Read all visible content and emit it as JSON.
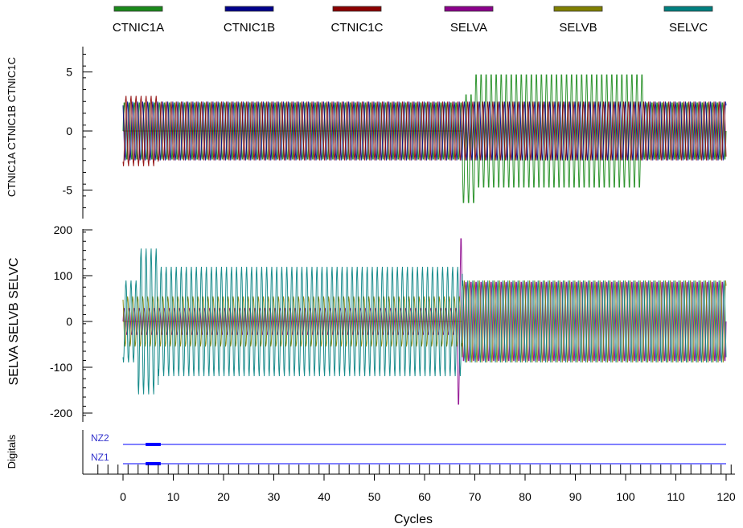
{
  "chart_data": {
    "type": "line",
    "xlabel": "Cycles",
    "x_ticks": [
      0,
      10,
      20,
      30,
      40,
      50,
      60,
      70,
      80,
      90,
      100,
      110,
      120
    ],
    "xlim": [
      -5,
      122
    ],
    "legend_position": "top",
    "legend": [
      {
        "name": "CTNIC1A",
        "color": "#1a8a1a"
      },
      {
        "name": "CTNIC1B",
        "color": "#00008b"
      },
      {
        "name": "CTNIC1C",
        "color": "#8b0000"
      },
      {
        "name": "SELVA",
        "color": "#8b008b"
      },
      {
        "name": "SELVB",
        "color": "#808000"
      },
      {
        "name": "SELVC",
        "color": "#008080"
      }
    ],
    "panels": [
      {
        "id": "currents",
        "ylabel": "CTNIC1A CTNIC1B CTNIC1C",
        "ylim": [
          -7.5,
          7.5
        ],
        "y_ticks": [
          5,
          0,
          -5
        ],
        "series": [
          {
            "name": "CTNIC1A",
            "segments": [
              {
                "x0": 0,
                "x1": 67.5,
                "amp": 2.5,
                "offset": 0
              },
              {
                "x0": 67.5,
                "x1": 70,
                "amp": 4.8,
                "offset": -1.5
              },
              {
                "x0": 70,
                "x1": 103.5,
                "amp": 5.0,
                "offset": 0
              },
              {
                "x0": 103.5,
                "x1": 120,
                "amp": 2.5,
                "offset": 0
              }
            ]
          },
          {
            "name": "CTNIC1B",
            "segments": [
              {
                "x0": 0,
                "x1": 120,
                "amp": 2.5,
                "offset": 0
              }
            ]
          },
          {
            "name": "CTNIC1C",
            "segments": [
              {
                "x0": 0,
                "x1": 7,
                "amp": 3.0,
                "offset": 0
              },
              {
                "x0": 7,
                "x1": 120,
                "amp": 2.5,
                "offset": 0
              }
            ]
          }
        ]
      },
      {
        "id": "voltages",
        "ylabel": "SELVA SELVB SELVC",
        "ylim": [
          -225,
          225
        ],
        "y_ticks": [
          200,
          100,
          0,
          -100,
          -200
        ],
        "series": [
          {
            "name": "SELVA",
            "segments": [
              {
                "x0": 0,
                "x1": 66.5,
                "amp": 30,
                "offset": 0
              },
              {
                "x0": 66.5,
                "x1": 67.5,
                "amp": 190,
                "offset": 0
              },
              {
                "x0": 67.5,
                "x1": 120,
                "amp": 90,
                "offset": 0
              }
            ]
          },
          {
            "name": "SELVB",
            "segments": [
              {
                "x0": 0,
                "x1": 67.5,
                "amp": 55,
                "offset": 0
              },
              {
                "x0": 67.5,
                "x1": 120,
                "amp": 90,
                "offset": 0
              }
            ]
          },
          {
            "name": "SELVC",
            "segments": [
              {
                "x0": 0,
                "x1": 3,
                "amp": 90,
                "offset": 0
              },
              {
                "x0": 3,
                "x1": 7,
                "amp": 160,
                "offset": 0
              },
              {
                "x0": 7,
                "x1": 67.5,
                "amp": 120,
                "offset": 0
              },
              {
                "x0": 67.5,
                "x1": 120,
                "amp": 90,
                "offset": 0
              }
            ]
          }
        ]
      }
    ],
    "digitals": {
      "ylabel": "Digitals",
      "channels": [
        {
          "name": "NZ2",
          "color": "#0000ff",
          "pulses": [
            [
              4.5,
              7.5
            ]
          ]
        },
        {
          "name": "NZ1",
          "color": "#0000ff",
          "pulses": [
            [
              4.5,
              7.5
            ]
          ]
        }
      ]
    }
  }
}
